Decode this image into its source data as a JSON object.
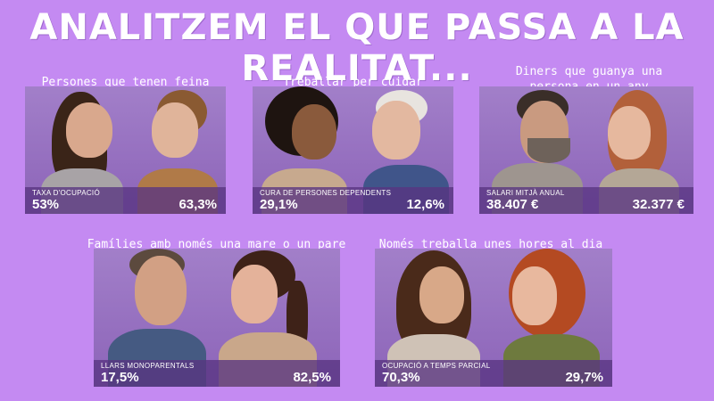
{
  "title": "ANALITZEM EL QUE PASSA A LA REALITAT...",
  "panels": [
    {
      "caption": "Persones que tenen feina",
      "label": "TAXA D'OCUPACIÓ",
      "left_value": "53%",
      "right_value": "63,3%"
    },
    {
      "caption": "Treballar per cuidar",
      "label": "CURA DE PERSONES DEPENDENTS",
      "left_value": "29,1%",
      "right_value": "12,6%"
    },
    {
      "caption": "Diners que guanya una persona en un any",
      "label": "SALARI MITJÀ ANUAL",
      "left_value": "38.407 €",
      "right_value": "32.377 €"
    },
    {
      "caption": "Famílies amb només una mare o un pare",
      "label": "LLARS MONOPARENTALS",
      "left_value": "17,5%",
      "right_value": "82,5%"
    },
    {
      "caption": "Només treballa unes hores al dia",
      "label": "OCUPACIÓ A TEMPS PARCIAL",
      "left_value": "70,3%",
      "right_value": "29,7%"
    }
  ]
}
